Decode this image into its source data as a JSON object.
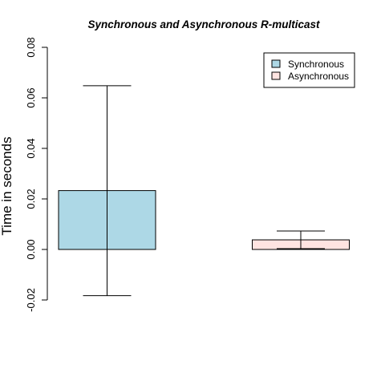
{
  "chart_data": {
    "type": "bar",
    "title": "Synchronous and Asynchronous R-multicast",
    "xlabel": "",
    "ylabel": "Time in seconds",
    "ylim": [
      -0.02,
      0.08
    ],
    "yticks": [
      "-0.02",
      "0.00",
      "0.02",
      "0.04",
      "0.06",
      "0.08"
    ],
    "legend_position": "top-right",
    "grid": false,
    "series": [
      {
        "name": "Synchronous",
        "value": 0.0233,
        "error_low": -0.0183,
        "error_high": 0.0648,
        "color": "#add8e6"
      },
      {
        "name": "Asynchronous",
        "value": 0.0038,
        "error_low": 0.0003,
        "error_high": 0.0073,
        "color": "#ffe4e1"
      }
    ]
  }
}
